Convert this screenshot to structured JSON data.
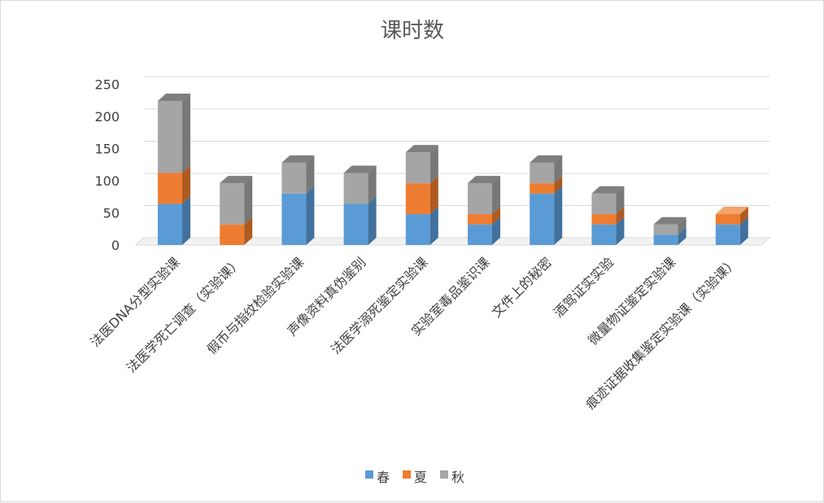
{
  "chart_data": {
    "type": "bar",
    "stacked": true,
    "style": "3d-column",
    "title": "课时数",
    "xlabel": "",
    "ylabel": "",
    "ylim": [
      0,
      250
    ],
    "yticks": [
      0,
      50,
      100,
      150,
      200,
      250
    ],
    "grid": true,
    "legend_position": "bottom",
    "categories": [
      "法医DNA分型实验课",
      "法医学死亡调查（实验课）",
      "假币与指纹检验实验课",
      "声像资料真伪鉴别",
      "法医学溺死鉴定实验课",
      "实验室毒品鉴识课",
      "文件上的秘密",
      "酒驾证实实验",
      "微量物证鉴定实验课",
      "痕迹证据收集鉴定实验课（实验课）"
    ],
    "series": [
      {
        "name": "春",
        "color": "#5b9bd5",
        "side": "#41719c",
        "top": "#8fb6e2",
        "values": [
          64,
          0,
          80,
          64,
          48,
          32,
          80,
          32,
          16,
          32
        ]
      },
      {
        "name": "夏",
        "color": "#ed7d31",
        "side": "#ae5a21",
        "top": "#f4a46b",
        "values": [
          48,
          32,
          0,
          0,
          48,
          16,
          16,
          16,
          0,
          16
        ]
      },
      {
        "name": "秋",
        "color": "#a5a5a5",
        "side": "#787878",
        "top": "#7f7f7f",
        "values": [
          112,
          64,
          48,
          48,
          48,
          48,
          32,
          32,
          16,
          0
        ]
      }
    ]
  }
}
